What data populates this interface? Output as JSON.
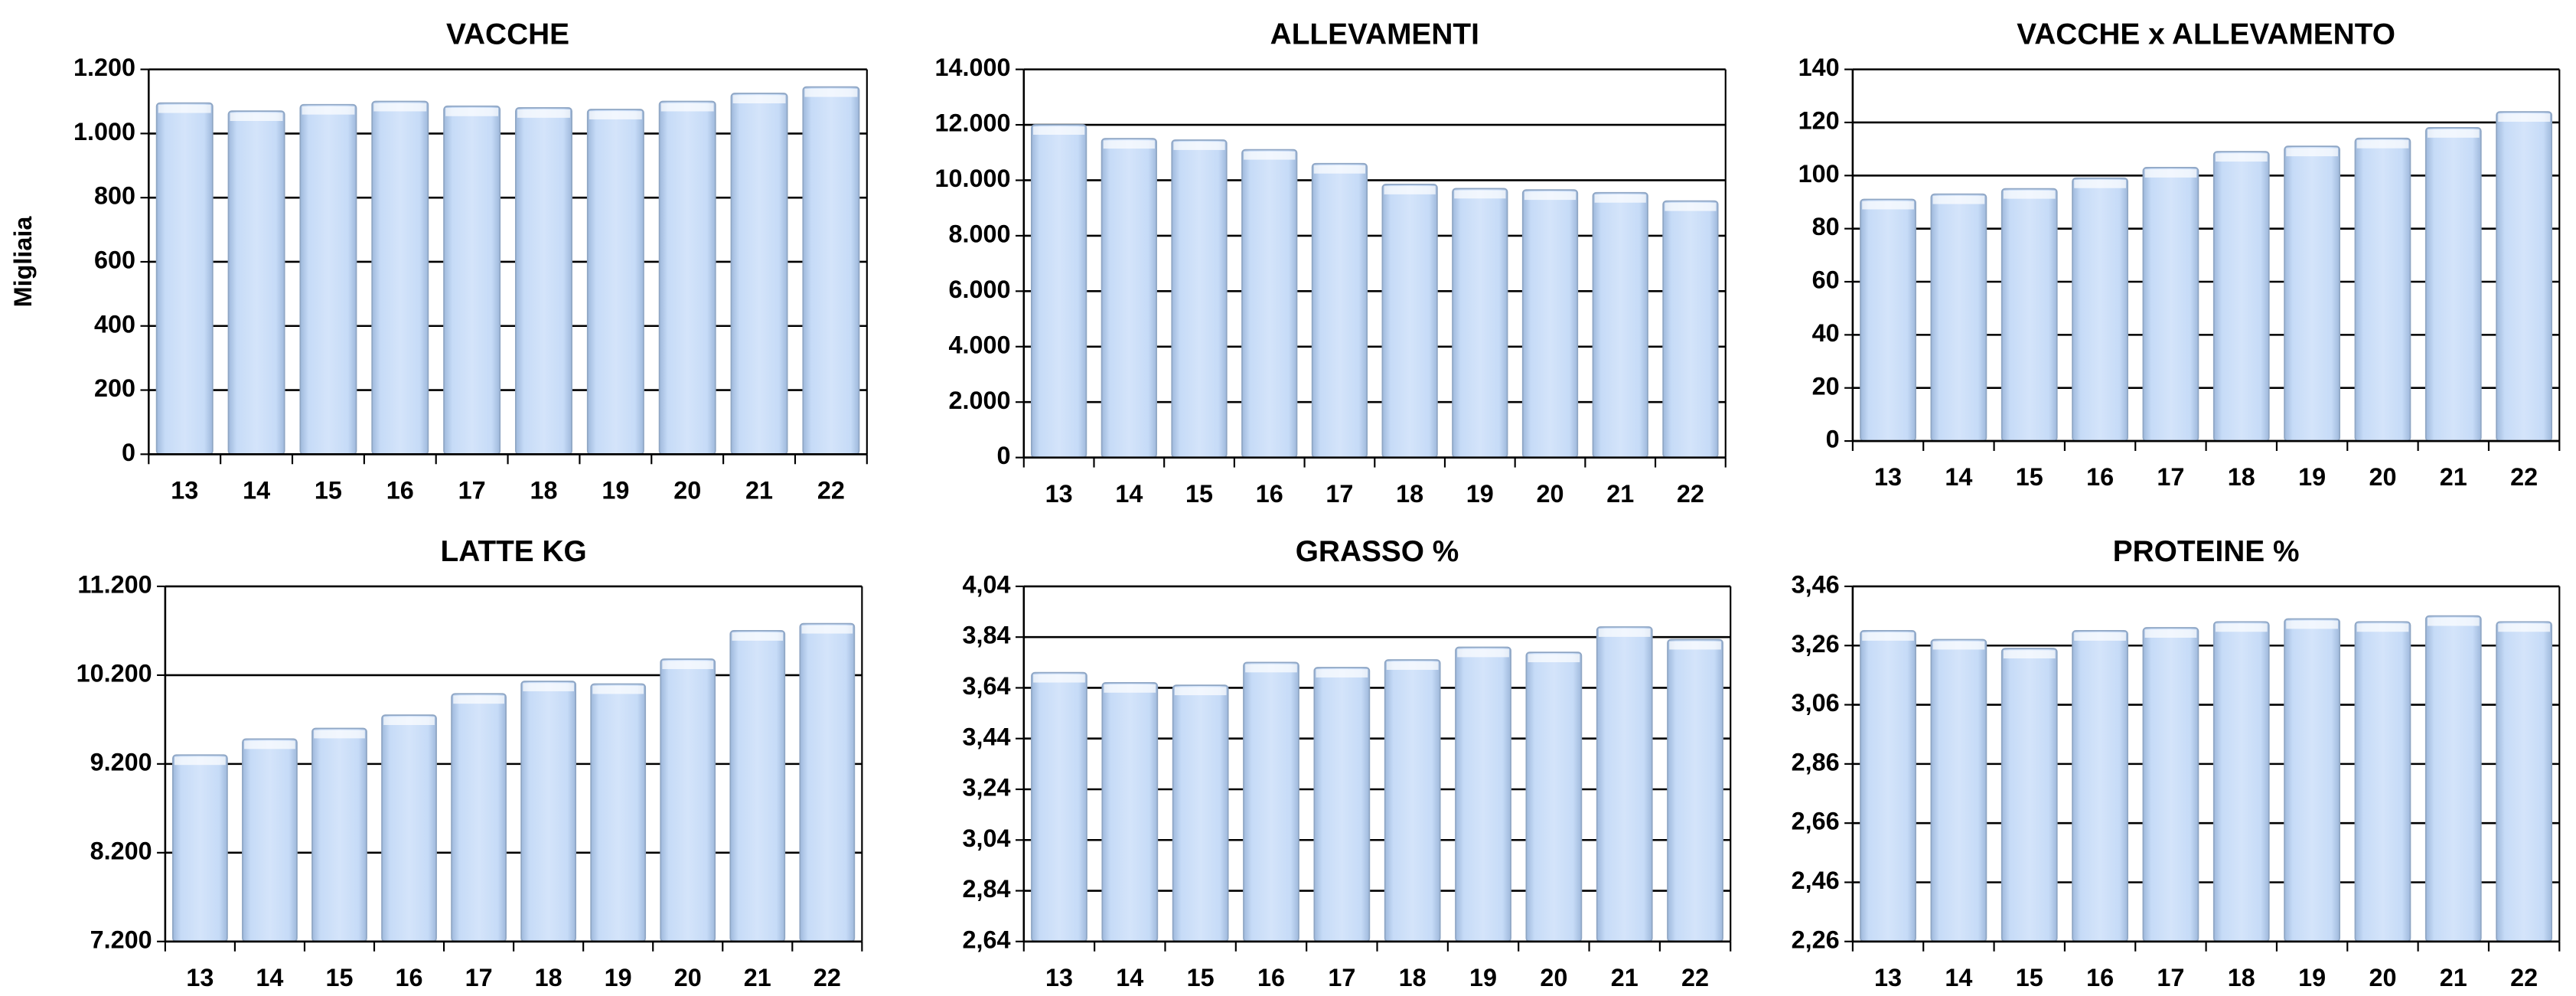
{
  "chart_data": [
    {
      "type": "bar",
      "title": "VACCHE",
      "ylabel": "Migliaia",
      "categories": [
        "13",
        "14",
        "15",
        "16",
        "17",
        "18",
        "19",
        "20",
        "21",
        "22"
      ],
      "values": [
        1095,
        1070,
        1090,
        1100,
        1085,
        1080,
        1075,
        1100,
        1125,
        1145
      ],
      "ylim": [
        0,
        1200
      ],
      "yticks": [
        0,
        200,
        400,
        600,
        800,
        {
          "value": 1000,
          "label": "1.000"
        },
        {
          "value": 1200,
          "label": "1.200"
        }
      ],
      "color": "#c6dbf7",
      "grid": true
    },
    {
      "type": "bar",
      "title": "ALLEVAMENTI",
      "categories": [
        "13",
        "14",
        "15",
        "16",
        "17",
        "18",
        "19",
        "20",
        "21",
        "22"
      ],
      "values": [
        12000,
        11500,
        11450,
        11100,
        10600,
        9850,
        9700,
        9650,
        9550,
        9250
      ],
      "ylim": [
        0,
        14000
      ],
      "yticks": [
        0,
        {
          "value": 2000,
          "label": "2.000"
        },
        {
          "value": 4000,
          "label": "4.000"
        },
        {
          "value": 6000,
          "label": "6.000"
        },
        {
          "value": 8000,
          "label": "8.000"
        },
        {
          "value": 10000,
          "label": "10.000"
        },
        {
          "value": 12000,
          "label": "12.000"
        },
        {
          "value": 14000,
          "label": "14.000"
        }
      ],
      "color": "#c6dbf7",
      "grid": true
    },
    {
      "type": "bar",
      "title": "VACCHE x ALLEVAMENTO",
      "categories": [
        "13",
        "14",
        "15",
        "16",
        "17",
        "18",
        "19",
        "20",
        "21",
        "22"
      ],
      "values": [
        91,
        93,
        95,
        99,
        103,
        109,
        111,
        114,
        118,
        124
      ],
      "ylim": [
        0,
        140
      ],
      "yticks": [
        0,
        20,
        40,
        60,
        80,
        100,
        120,
        140
      ],
      "color": "#c6dbf7",
      "grid": true
    },
    {
      "type": "bar",
      "title": "LATTE KG",
      "categories": [
        "13",
        "14",
        "15",
        "16",
        "17",
        "18",
        "19",
        "20",
        "21",
        "22"
      ],
      "values": [
        9300,
        9480,
        9600,
        9750,
        9990,
        10130,
        10100,
        10380,
        10700,
        10780
      ],
      "ylim": [
        7200,
        11200
      ],
      "yticks": [
        {
          "value": 7200,
          "label": "7.200"
        },
        {
          "value": 8200,
          "label": "8.200"
        },
        {
          "value": 9200,
          "label": "9.200"
        },
        {
          "value": 10200,
          "label": "10.200"
        },
        {
          "value": 11200,
          "label": "11.200"
        }
      ],
      "color": "#c6dbf7",
      "grid": true
    },
    {
      "type": "bar",
      "title": "GRASSO %",
      "categories": [
        "13",
        "14",
        "15",
        "16",
        "17",
        "18",
        "19",
        "20",
        "21",
        "22"
      ],
      "values": [
        3.7,
        3.66,
        3.65,
        3.74,
        3.72,
        3.75,
        3.8,
        3.78,
        3.88,
        3.83
      ],
      "ylim": [
        2.64,
        4.04
      ],
      "yticks": [
        {
          "value": 2.64,
          "label": "2,64"
        },
        {
          "value": 2.84,
          "label": "2,84"
        },
        {
          "value": 3.04,
          "label": "3,04"
        },
        {
          "value": 3.24,
          "label": "3,24"
        },
        {
          "value": 3.44,
          "label": "3,44"
        },
        {
          "value": 3.64,
          "label": "3,64"
        },
        {
          "value": 3.84,
          "label": "3,84"
        },
        {
          "value": 4.04,
          "label": "4,04"
        }
      ],
      "color": "#c6dbf7",
      "grid": true
    },
    {
      "type": "bar",
      "title": "PROTEINE %",
      "categories": [
        "13",
        "14",
        "15",
        "16",
        "17",
        "18",
        "19",
        "20",
        "21",
        "22"
      ],
      "values": [
        3.31,
        3.28,
        3.25,
        3.31,
        3.32,
        3.34,
        3.35,
        3.34,
        3.36,
        3.34
      ],
      "ylim": [
        2.26,
        3.46
      ],
      "yticks": [
        {
          "value": 2.26,
          "label": "2,26"
        },
        {
          "value": 2.46,
          "label": "2,46"
        },
        {
          "value": 2.66,
          "label": "2,66"
        },
        {
          "value": 2.86,
          "label": "2,86"
        },
        {
          "value": 3.06,
          "label": "3,06"
        },
        {
          "value": 3.26,
          "label": "3,26"
        },
        {
          "value": 3.46,
          "label": "3,46"
        }
      ],
      "color": "#c6dbf7",
      "grid": true
    }
  ]
}
